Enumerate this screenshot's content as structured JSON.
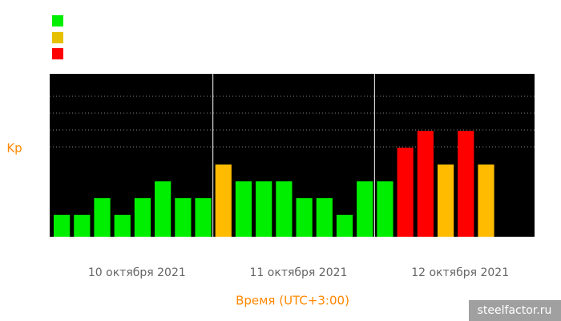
{
  "chart_data": {
    "type": "bar",
    "y_label": "Kp",
    "x_label": "Время (UTC+3:00)",
    "watermark": "steelfactor.ru",
    "ylim": [
      0,
      9.7
    ],
    "slots_per_group": 8,
    "groups": [
      {
        "label": "10 октября 2021",
        "values": [
          1.3,
          1.3,
          2.3,
          1.3,
          2.3,
          3.3,
          2.3,
          2.3
        ],
        "colors": [
          "#00ee00",
          "#00ee00",
          "#00ee00",
          "#00ee00",
          "#00ee00",
          "#00ee00",
          "#00ee00",
          "#00ee00"
        ]
      },
      {
        "label": "11 октября 2021",
        "values": [
          4.3,
          3.3,
          3.3,
          3.3,
          2.3,
          2.3,
          1.3,
          3.3
        ],
        "colors": [
          "#ffbb00",
          "#00ee00",
          "#00ee00",
          "#00ee00",
          "#00ee00",
          "#00ee00",
          "#00ee00",
          "#00ee00"
        ]
      },
      {
        "label": "12 октября 2021",
        "values": [
          3.3,
          5.3,
          6.3,
          4.3,
          6.3,
          4.3
        ],
        "colors": [
          "#00ee00",
          "#ff0000",
          "#ff0000",
          "#ffbb00",
          "#ff0000",
          "#ffbb00"
        ]
      }
    ]
  }
}
